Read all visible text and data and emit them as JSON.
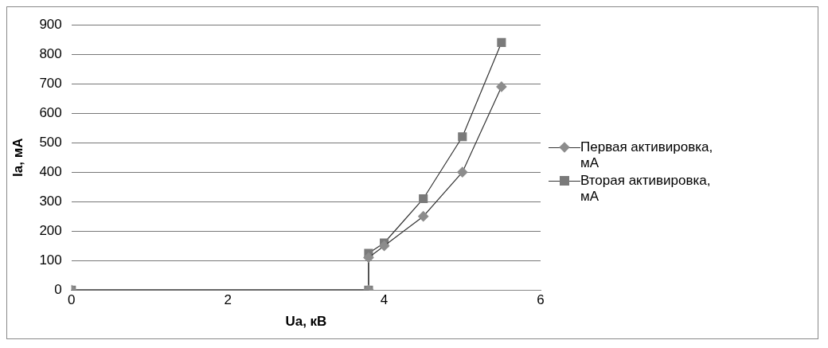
{
  "chart_data": {
    "type": "scatter",
    "xlabel": "Ua, кВ",
    "ylabel": "Ia, мА",
    "xlim": [
      0,
      6
    ],
    "xticks": [
      0,
      2,
      4,
      6
    ],
    "ylim": [
      0,
      900
    ],
    "yticks": [
      0,
      100,
      200,
      300,
      400,
      500,
      600,
      700,
      800,
      900
    ],
    "grid": "y",
    "legend": "right",
    "series": [
      {
        "name": "Первая активировка, мА",
        "type": "line",
        "marker": "diamond",
        "color": "#8c8c8c",
        "x": [
          0,
          3.8,
          3.8,
          4,
          4.5,
          5,
          5.5
        ],
        "values": [
          0,
          0,
          110,
          150,
          250,
          400,
          690
        ]
      },
      {
        "name": "Вторая активировка, мА",
        "type": "line",
        "marker": "square",
        "color": "#7a7a7a",
        "x": [
          0,
          3.8,
          3.8,
          4,
          4.5,
          5,
          5.5
        ],
        "values": [
          0,
          0,
          125,
          160,
          310,
          520,
          840
        ]
      }
    ]
  }
}
